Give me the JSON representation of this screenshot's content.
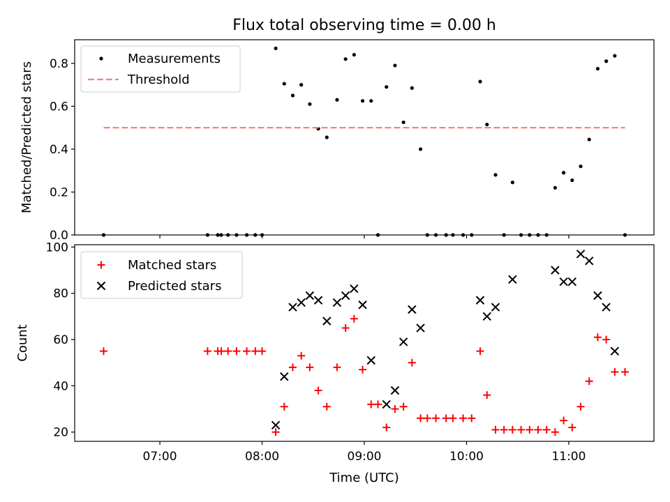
{
  "chart_data": [
    {
      "type": "scatter",
      "title": "Flux total observing time = 0.00 h",
      "xlabel": "",
      "ylabel": "Matched/Predicted stars",
      "xlim": [
        "06:10",
        "11:50"
      ],
      "ylim": [
        0.0,
        0.91
      ],
      "yticks": [
        0.0,
        0.2,
        0.4,
        0.6,
        0.8
      ],
      "ytick_labels": [
        "0.0",
        "0.2",
        "0.4",
        "0.6",
        "0.8"
      ],
      "xticks": [
        "07:00",
        "08:00",
        "09:00",
        "10:00",
        "11:00"
      ],
      "legend_position": "top-left",
      "series": [
        {
          "name": "Measurements",
          "kind": "points",
          "color": "#000000",
          "x": [
            "06:27",
            "07:28",
            "07:34",
            "07:36",
            "07:40",
            "07:45",
            "07:51",
            "07:56",
            "08:00",
            "08:08",
            "08:13",
            "08:18",
            "08:23",
            "08:28",
            "08:33",
            "08:38",
            "08:44",
            "08:49",
            "08:54",
            "08:59",
            "09:04",
            "09:08",
            "09:13",
            "09:18",
            "09:23",
            "09:28",
            "09:33",
            "09:37",
            "09:42",
            "09:48",
            "09:52",
            "09:58",
            "10:03",
            "10:08",
            "10:12",
            "10:17",
            "10:22",
            "10:27",
            "10:32",
            "10:37",
            "10:42",
            "10:47",
            "10:52",
            "10:57",
            "11:02",
            "11:07",
            "11:12",
            "11:17",
            "11:22",
            "11:27",
            "11:33"
          ],
          "y": [
            0.0,
            0.0,
            0.0,
            0.0,
            0.0,
            0.0,
            0.0,
            0.0,
            0.0,
            0.87,
            0.705,
            0.65,
            0.7,
            0.61,
            0.495,
            0.455,
            0.63,
            0.82,
            0.84,
            0.625,
            0.625,
            0.0,
            0.69,
            0.79,
            0.525,
            0.685,
            0.4,
            0.0,
            0.0,
            0.0,
            0.0,
            0.0,
            0.0,
            0.715,
            0.515,
            0.28,
            0.0,
            0.245,
            0.0,
            0.0,
            0.0,
            0.0,
            0.22,
            0.29,
            0.255,
            0.32,
            0.445,
            0.775,
            0.81,
            0.835,
            0.0
          ]
        },
        {
          "name": "Threshold",
          "kind": "dashed-line",
          "color": "#ff7f7f",
          "x": [
            "06:27",
            "11:33"
          ],
          "y": [
            0.5,
            0.5
          ]
        }
      ]
    },
    {
      "type": "scatter",
      "title": "",
      "xlabel": "Time (UTC)",
      "ylabel": "Count",
      "xlim": [
        "06:10",
        "11:50"
      ],
      "ylim": [
        16,
        101
      ],
      "yticks": [
        20,
        40,
        60,
        80,
        100
      ],
      "ytick_labels": [
        "20",
        "40",
        "60",
        "80",
        "100"
      ],
      "xticks": [
        "07:00",
        "08:00",
        "09:00",
        "10:00",
        "11:00"
      ],
      "xtick_labels": [
        "07:00",
        "08:00",
        "09:00",
        "10:00",
        "11:00"
      ],
      "legend_position": "top-left",
      "series": [
        {
          "name": "Matched stars",
          "marker": "plus",
          "color": "#ff0000",
          "x": [
            "06:27",
            "07:28",
            "07:34",
            "07:36",
            "07:40",
            "07:45",
            "07:51",
            "07:56",
            "08:00",
            "08:08",
            "08:13",
            "08:18",
            "08:23",
            "08:28",
            "08:33",
            "08:38",
            "08:44",
            "08:49",
            "08:54",
            "08:59",
            "09:04",
            "09:08",
            "09:13",
            "09:18",
            "09:23",
            "09:28",
            "09:33",
            "09:37",
            "09:42",
            "09:48",
            "09:52",
            "09:58",
            "10:03",
            "10:08",
            "10:12",
            "10:17",
            "10:22",
            "10:27",
            "10:32",
            "10:37",
            "10:42",
            "10:47",
            "10:52",
            "10:57",
            "11:02",
            "11:07",
            "11:12",
            "11:17",
            "11:22",
            "11:27",
            "11:33"
          ],
          "y": [
            55,
            55,
            55,
            55,
            55,
            55,
            55,
            55,
            55,
            20,
            31,
            48,
            53,
            48,
            38,
            31,
            48,
            65,
            69,
            47,
            32,
            32,
            22,
            30,
            31,
            50,
            26,
            26,
            26,
            26,
            26,
            26,
            26,
            55,
            36,
            21,
            21,
            21,
            21,
            21,
            21,
            21,
            20,
            25,
            22,
            31,
            42,
            61,
            60,
            46,
            46
          ]
        },
        {
          "name": "Predicted stars",
          "marker": "x",
          "color": "#000000",
          "x": [
            "08:08",
            "08:13",
            "08:18",
            "08:23",
            "08:28",
            "08:33",
            "08:38",
            "08:44",
            "08:49",
            "08:54",
            "08:59",
            "09:04",
            "09:13",
            "09:18",
            "09:23",
            "09:28",
            "09:33",
            "10:08",
            "10:12",
            "10:17",
            "10:27",
            "10:52",
            "10:57",
            "11:02",
            "11:07",
            "11:12",
            "11:17",
            "11:22",
            "11:27"
          ],
          "y": [
            23,
            44,
            74,
            76,
            79,
            77,
            68,
            76,
            79,
            82,
            75,
            51,
            32,
            38,
            59,
            73,
            65,
            77,
            70,
            74,
            86,
            90,
            85,
            85,
            97,
            94,
            79,
            74,
            55
          ]
        }
      ]
    }
  ]
}
